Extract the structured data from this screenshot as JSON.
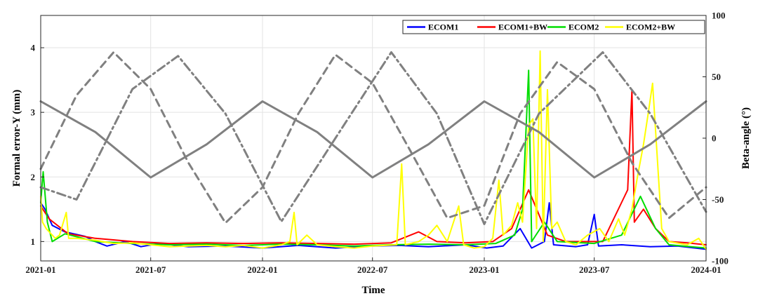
{
  "chart_data": {
    "type": "line",
    "xlabel": "Time",
    "ylabel_left": "Formal error-Y (mm)",
    "ylabel_right": "Beta-angle (°)",
    "x_range": [
      "2021-01-01",
      "2024-01-01"
    ],
    "x_ticks": [
      "2021-01",
      "2021-07",
      "2022-01",
      "2022-07",
      "2023-01",
      "2023-07",
      "2024-01"
    ],
    "ylim_left": [
      0.7,
      4.5
    ],
    "yticks_left": [
      "1",
      "2",
      "3",
      "4"
    ],
    "ylim_right": [
      -100,
      100
    ],
    "yticks_right": [
      "-100",
      "-50",
      "0",
      "50",
      "100"
    ],
    "grid": true,
    "legend_position": "top-right",
    "series": [
      {
        "name": "ECOM1",
        "color": "#0000ff",
        "axis": "left",
        "points": [
          [
            "2021-01-01",
            1.6
          ],
          [
            "2021-01-08",
            1.5
          ],
          [
            "2021-01-20",
            1.25
          ],
          [
            "2021-02-10",
            1.15
          ],
          [
            "2021-03-15",
            1.08
          ],
          [
            "2021-04-01",
            1.0
          ],
          [
            "2021-04-20",
            0.93
          ],
          [
            "2021-05-20",
            1.0
          ],
          [
            "2021-06-15",
            0.92
          ],
          [
            "2021-07-15",
            0.97
          ],
          [
            "2021-09-01",
            0.92
          ],
          [
            "2021-11-01",
            0.93
          ],
          [
            "2022-01-01",
            0.9
          ],
          [
            "2022-03-01",
            0.94
          ],
          [
            "2022-05-01",
            0.9
          ],
          [
            "2022-07-01",
            0.93
          ],
          [
            "2022-08-15",
            0.94
          ],
          [
            "2022-10-01",
            0.92
          ],
          [
            "2022-12-01",
            0.95
          ],
          [
            "2023-01-05",
            0.9
          ],
          [
            "2023-02-01",
            0.93
          ],
          [
            "2023-03-01",
            1.2
          ],
          [
            "2023-03-20",
            0.9
          ],
          [
            "2023-04-10",
            1.0
          ],
          [
            "2023-04-18",
            1.6
          ],
          [
            "2023-04-25",
            0.95
          ],
          [
            "2023-06-01",
            0.92
          ],
          [
            "2023-06-20",
            0.95
          ],
          [
            "2023-07-01",
            1.42
          ],
          [
            "2023-07-08",
            0.93
          ],
          [
            "2023-08-15",
            0.95
          ],
          [
            "2023-10-01",
            0.92
          ],
          [
            "2023-11-15",
            0.93
          ],
          [
            "2024-01-01",
            0.88
          ]
        ]
      },
      {
        "name": "ECOM1+BW",
        "color": "#ff0000",
        "axis": "left",
        "points": [
          [
            "2021-01-01",
            1.55
          ],
          [
            "2021-01-15",
            1.35
          ],
          [
            "2021-02-15",
            1.12
          ],
          [
            "2021-04-01",
            1.05
          ],
          [
            "2021-06-01",
            1.0
          ],
          [
            "2021-08-01",
            0.97
          ],
          [
            "2021-10-01",
            0.98
          ],
          [
            "2021-12-01",
            0.97
          ],
          [
            "2022-02-01",
            0.98
          ],
          [
            "2022-04-01",
            0.97
          ],
          [
            "2022-06-01",
            0.96
          ],
          [
            "2022-08-01",
            0.98
          ],
          [
            "2022-09-15",
            1.15
          ],
          [
            "2022-10-15",
            1.0
          ],
          [
            "2022-12-01",
            0.98
          ],
          [
            "2023-01-15",
            1.0
          ],
          [
            "2023-02-15",
            1.2
          ],
          [
            "2023-03-15",
            1.8
          ],
          [
            "2023-04-15",
            1.1
          ],
          [
            "2023-05-15",
            1.0
          ],
          [
            "2023-07-15",
            1.0
          ],
          [
            "2023-08-25",
            1.8
          ],
          [
            "2023-09-01",
            3.35
          ],
          [
            "2023-09-05",
            1.3
          ],
          [
            "2023-09-20",
            1.5
          ],
          [
            "2023-10-10",
            1.2
          ],
          [
            "2023-11-01",
            1.0
          ],
          [
            "2023-12-01",
            0.98
          ],
          [
            "2024-01-01",
            0.95
          ]
        ]
      },
      {
        "name": "ECOM2",
        "color": "#00dd00",
        "axis": "left",
        "points": [
          [
            "2021-01-01",
            1.6
          ],
          [
            "2021-01-05",
            2.08
          ],
          [
            "2021-01-12",
            1.3
          ],
          [
            "2021-01-20",
            1.0
          ],
          [
            "2021-02-10",
            1.12
          ],
          [
            "2021-04-01",
            1.0
          ],
          [
            "2021-06-01",
            0.97
          ],
          [
            "2021-08-01",
            0.95
          ],
          [
            "2021-10-01",
            0.96
          ],
          [
            "2021-12-01",
            0.94
          ],
          [
            "2022-02-01",
            0.96
          ],
          [
            "2022-04-01",
            0.95
          ],
          [
            "2022-06-01",
            0.93
          ],
          [
            "2022-08-01",
            0.95
          ],
          [
            "2022-10-01",
            0.96
          ],
          [
            "2022-12-01",
            0.95
          ],
          [
            "2023-01-20",
            0.97
          ],
          [
            "2023-02-20",
            1.1
          ],
          [
            "2023-03-05",
            1.5
          ],
          [
            "2023-03-15",
            3.65
          ],
          [
            "2023-03-20",
            1.0
          ],
          [
            "2023-04-10",
            1.3
          ],
          [
            "2023-05-01",
            1.0
          ],
          [
            "2023-07-01",
            0.97
          ],
          [
            "2023-08-15",
            1.1
          ],
          [
            "2023-09-15",
            1.7
          ],
          [
            "2023-10-10",
            1.2
          ],
          [
            "2023-11-01",
            0.95
          ],
          [
            "2024-01-01",
            0.9
          ]
        ]
      },
      {
        "name": "ECOM2+BW",
        "color": "#ffff00",
        "axis": "left",
        "points": [
          [
            "2021-01-01",
            1.7
          ],
          [
            "2021-01-04",
            1.3
          ],
          [
            "2021-01-10",
            1.2
          ],
          [
            "2021-01-25",
            1.05
          ],
          [
            "2021-02-01",
            1.1
          ],
          [
            "2021-02-12",
            1.45
          ],
          [
            "2021-02-16",
            1.05
          ],
          [
            "2021-03-01",
            1.05
          ],
          [
            "2021-04-01",
            1.02
          ],
          [
            "2021-05-01",
            0.97
          ],
          [
            "2021-06-01",
            0.98
          ],
          [
            "2021-07-01",
            0.95
          ],
          [
            "2021-08-01",
            0.92
          ],
          [
            "2021-09-01",
            0.93
          ],
          [
            "2021-10-01",
            0.94
          ],
          [
            "2021-11-01",
            0.92
          ],
          [
            "2021-12-01",
            0.94
          ],
          [
            "2022-01-01",
            0.9
          ],
          [
            "2022-02-01",
            0.95
          ],
          [
            "2022-02-15",
            1.0
          ],
          [
            "2022-02-22",
            1.45
          ],
          [
            "2022-02-27",
            0.95
          ],
          [
            "2022-03-15",
            1.1
          ],
          [
            "2022-04-01",
            0.95
          ],
          [
            "2022-05-01",
            0.92
          ],
          [
            "2022-06-01",
            0.9
          ],
          [
            "2022-07-01",
            0.93
          ],
          [
            "2022-08-10",
            0.95
          ],
          [
            "2022-08-18",
            2.2
          ],
          [
            "2022-08-24",
            0.95
          ],
          [
            "2022-09-15",
            1.0
          ],
          [
            "2022-10-01",
            1.1
          ],
          [
            "2022-10-15",
            1.25
          ],
          [
            "2022-11-01",
            1.0
          ],
          [
            "2022-11-20",
            1.55
          ],
          [
            "2022-11-28",
            0.95
          ],
          [
            "2022-12-15",
            0.9
          ],
          [
            "2023-01-01",
            0.92
          ],
          [
            "2023-01-15",
            1.05
          ],
          [
            "2023-01-25",
            1.95
          ],
          [
            "2023-02-01",
            1.1
          ],
          [
            "2023-02-15",
            1.25
          ],
          [
            "2023-02-25",
            1.6
          ],
          [
            "2023-03-05",
            1.3
          ],
          [
            "2023-03-15",
            2.8
          ],
          [
            "2023-03-22",
            2.9
          ],
          [
            "2023-03-28",
            1.2
          ],
          [
            "2023-04-03",
            3.95
          ],
          [
            "2023-04-08",
            1.0
          ],
          [
            "2023-04-15",
            3.35
          ],
          [
            "2023-04-22",
            1.2
          ],
          [
            "2023-05-01",
            1.3
          ],
          [
            "2023-05-15",
            1.0
          ],
          [
            "2023-06-01",
            0.95
          ],
          [
            "2023-06-20",
            1.1
          ],
          [
            "2023-07-10",
            1.2
          ],
          [
            "2023-07-25",
            1.0
          ],
          [
            "2023-08-10",
            1.35
          ],
          [
            "2023-08-20",
            1.1
          ],
          [
            "2023-09-01",
            1.5
          ],
          [
            "2023-09-10",
            2.0
          ],
          [
            "2023-09-20",
            2.5
          ],
          [
            "2023-09-28",
            3.0
          ],
          [
            "2023-10-05",
            3.45
          ],
          [
            "2023-10-12",
            2.4
          ],
          [
            "2023-10-20",
            1.2
          ],
          [
            "2023-11-01",
            1.0
          ],
          [
            "2023-12-01",
            0.95
          ],
          [
            "2023-12-20",
            1.05
          ],
          [
            "2024-01-01",
            0.88
          ]
        ]
      },
      {
        "color": "#808080",
        "axis": "right",
        "style": "solid",
        "points": [
          [
            "2021-01-01",
            30
          ],
          [
            "2021-04-01",
            5
          ],
          [
            "2021-07-01",
            -32
          ],
          [
            "2021-10-01",
            -5
          ],
          [
            "2022-01-01",
            30
          ],
          [
            "2022-04-01",
            5
          ],
          [
            "2022-07-01",
            -32
          ],
          [
            "2022-10-01",
            -5
          ],
          [
            "2023-01-01",
            30
          ],
          [
            "2023-04-01",
            5
          ],
          [
            "2023-07-01",
            -32
          ],
          [
            "2023-10-01",
            -5
          ],
          [
            "2024-01-01",
            30
          ]
        ]
      },
      {
        "color": "#808080",
        "axis": "right",
        "style": "dashed",
        "points": [
          [
            "2021-01-01",
            -25
          ],
          [
            "2021-03-01",
            35
          ],
          [
            "2021-05-01",
            70
          ],
          [
            "2021-07-01",
            40
          ],
          [
            "2021-09-01",
            -20
          ],
          [
            "2021-11-01",
            -69
          ],
          [
            "2022-01-01",
            -40
          ],
          [
            "2022-03-01",
            20
          ],
          [
            "2022-05-01",
            68
          ],
          [
            "2022-07-01",
            45
          ],
          [
            "2022-09-01",
            -10
          ],
          [
            "2022-11-01",
            -65
          ],
          [
            "2023-01-01",
            -55
          ],
          [
            "2023-03-01",
            20
          ],
          [
            "2023-05-01",
            62
          ],
          [
            "2023-07-01",
            40
          ],
          [
            "2023-09-01",
            -20
          ],
          [
            "2023-11-01",
            -65
          ],
          [
            "2024-01-01",
            -40
          ]
        ]
      },
      {
        "color": "#808080",
        "axis": "right",
        "style": "dashdot",
        "points": [
          [
            "2021-01-01",
            -40
          ],
          [
            "2021-03-01",
            -50
          ],
          [
            "2021-06-01",
            40
          ],
          [
            "2021-08-15",
            67
          ],
          [
            "2021-11-01",
            20
          ],
          [
            "2022-02-01",
            -68
          ],
          [
            "2022-05-01",
            0
          ],
          [
            "2022-08-01",
            70
          ],
          [
            "2022-10-15",
            20
          ],
          [
            "2023-01-01",
            -70
          ],
          [
            "2023-04-01",
            20
          ],
          [
            "2023-07-15",
            70
          ],
          [
            "2023-10-01",
            20
          ],
          [
            "2024-01-01",
            -60
          ]
        ]
      }
    ]
  }
}
